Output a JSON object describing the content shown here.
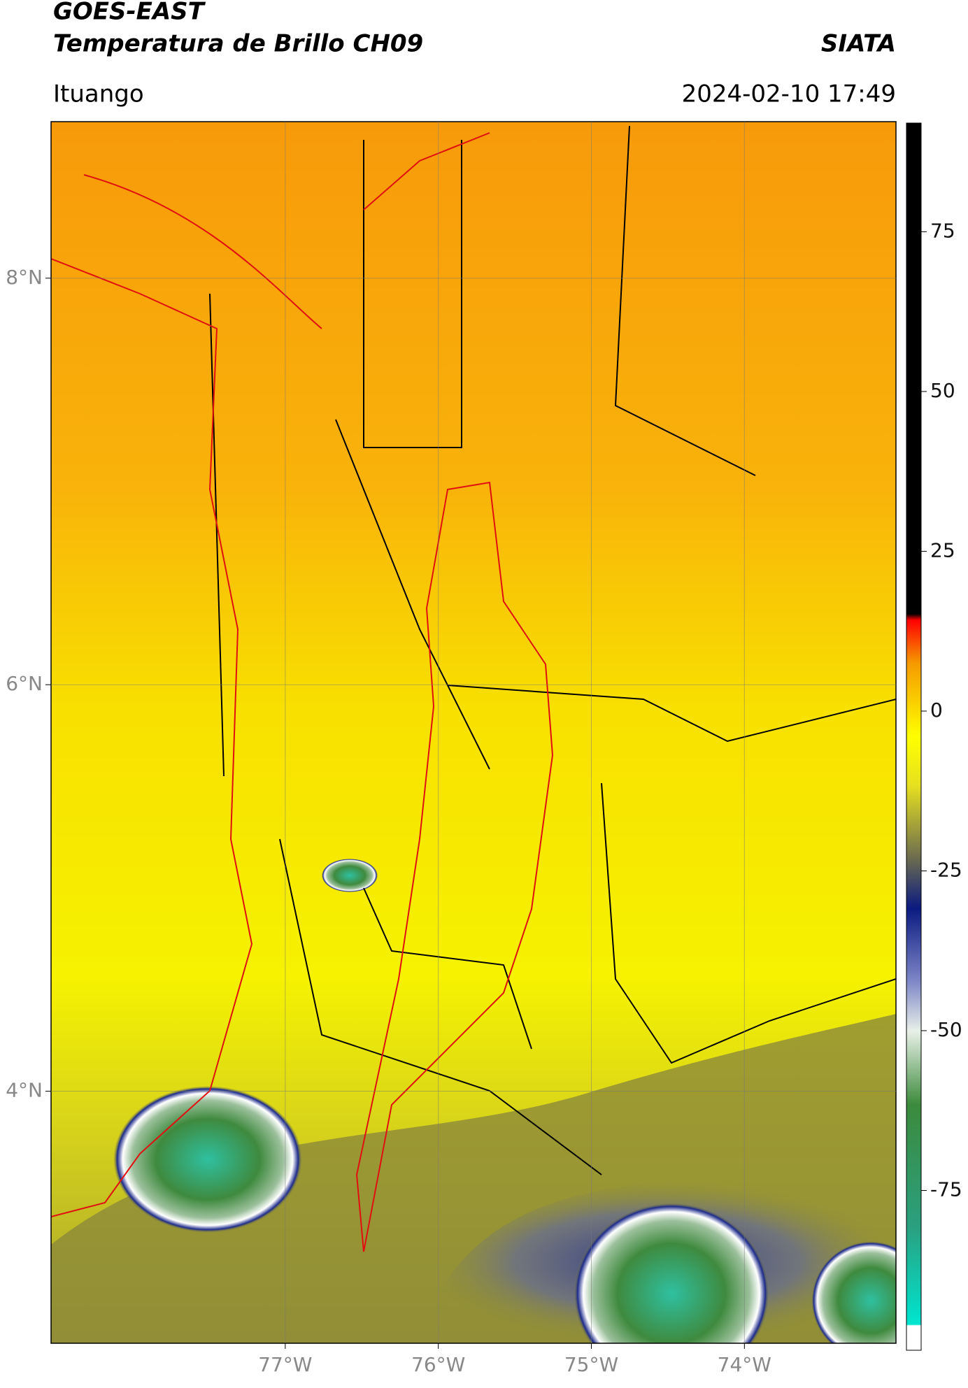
{
  "header": {
    "title_line1": "GOES-EAST",
    "title_line2": "Temperatura de Brillo CH09",
    "organization": "SIATA",
    "location": "Ituango",
    "datetime": "2024-02-10 17:49"
  },
  "map": {
    "xlim": [
      -78.53,
      -73.01
    ],
    "ylim": [
      2.76,
      8.77
    ],
    "xticks": [
      {
        "value": -77,
        "label": "77°W"
      },
      {
        "value": -76,
        "label": "76°W"
      },
      {
        "value": -75,
        "label": "75°W"
      },
      {
        "value": -74,
        "label": "74°W"
      }
    ],
    "yticks": [
      {
        "value": 8,
        "label": "8°N"
      },
      {
        "value": 6,
        "label": "6°N"
      },
      {
        "value": 4,
        "label": "4°N"
      }
    ]
  },
  "colorbar": {
    "lim": [
      -100,
      92
    ],
    "ticks": [
      75,
      50,
      25,
      0,
      -25,
      -50,
      -75
    ]
  }
}
